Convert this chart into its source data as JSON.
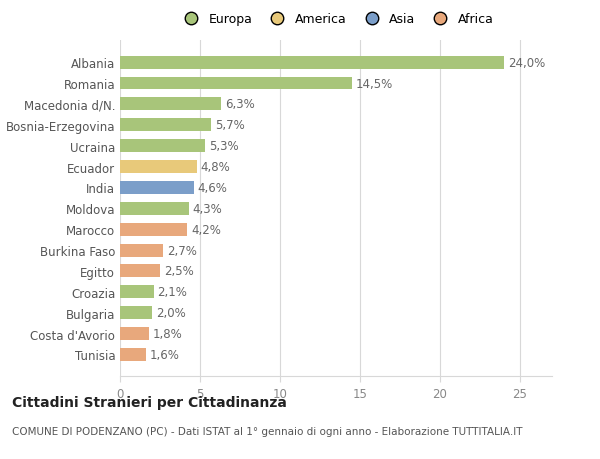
{
  "countries": [
    "Tunisia",
    "Costa d'Avorio",
    "Bulgaria",
    "Croazia",
    "Egitto",
    "Burkina Faso",
    "Marocco",
    "Moldova",
    "India",
    "Ecuador",
    "Ucraina",
    "Bosnia-Erzegovina",
    "Macedonia d/N.",
    "Romania",
    "Albania"
  ],
  "values": [
    1.6,
    1.8,
    2.0,
    2.1,
    2.5,
    2.7,
    4.2,
    4.3,
    4.6,
    4.8,
    5.3,
    5.7,
    6.3,
    14.5,
    24.0
  ],
  "labels": [
    "1,6%",
    "1,8%",
    "2,0%",
    "2,1%",
    "2,5%",
    "2,7%",
    "4,2%",
    "4,3%",
    "4,6%",
    "4,8%",
    "5,3%",
    "5,7%",
    "6,3%",
    "14,5%",
    "24,0%"
  ],
  "colors": [
    "#e8a87c",
    "#e8a87c",
    "#a8c57a",
    "#a8c57a",
    "#e8a87c",
    "#e8a87c",
    "#e8a87c",
    "#a8c57a",
    "#7b9ec9",
    "#e8c97a",
    "#a8c57a",
    "#a8c57a",
    "#a8c57a",
    "#a8c57a",
    "#a8c57a"
  ],
  "legend_labels": [
    "Europa",
    "America",
    "Asia",
    "Africa"
  ],
  "legend_colors": [
    "#a8c57a",
    "#e8c97a",
    "#7b9ec9",
    "#e8a87c"
  ],
  "title": "Cittadini Stranieri per Cittadinanza",
  "subtitle": "COMUNE DI PODENZANO (PC) - Dati ISTAT al 1° gennaio di ogni anno - Elaborazione TUTTITALIA.IT",
  "xlim": [
    0,
    27
  ],
  "xticks": [
    0,
    5,
    10,
    15,
    20,
    25
  ],
  "background_color": "#ffffff",
  "grid_color": "#d8d8d8",
  "bar_height": 0.62,
  "label_fontsize": 8.5,
  "label_color": "#666666",
  "tick_color": "#aaaaaa",
  "title_fontsize": 10,
  "subtitle_fontsize": 7.5
}
